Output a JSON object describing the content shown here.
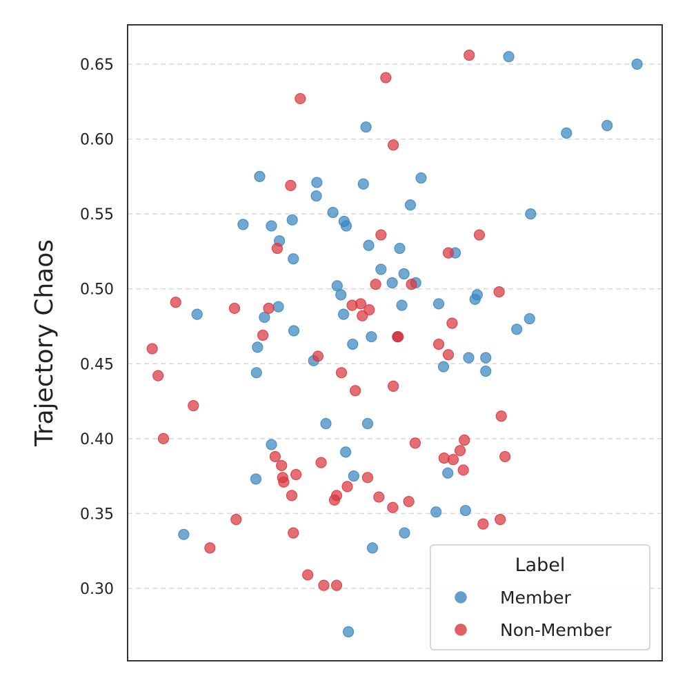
{
  "chart_data": {
    "type": "scatter",
    "title": "",
    "xlabel": "",
    "ylabel": "Trajectory Chaos",
    "ylim": [
      0.27,
      0.675
    ],
    "xlim": [
      0,
      1
    ],
    "yticks": [
      0.3,
      0.35,
      0.4,
      0.45,
      0.5,
      0.55,
      0.6,
      0.65
    ],
    "ytick_labels": [
      "0.30",
      "0.35",
      "0.40",
      "0.45",
      "0.50",
      "0.55",
      "0.60",
      "0.65"
    ],
    "x_ticks_shown": false,
    "grid": "horizontal dashed",
    "legend": {
      "title": "Label",
      "position": "bottom-right"
    },
    "series": [
      {
        "name": "Member",
        "color": "#3a87c0",
        "points": [
          [
            0.713,
            0.655
          ],
          [
            0.953,
            0.65
          ],
          [
            0.446,
            0.608
          ],
          [
            0.821,
            0.604
          ],
          [
            0.897,
            0.609
          ],
          [
            0.247,
            0.575
          ],
          [
            0.353,
            0.562
          ],
          [
            0.354,
            0.571
          ],
          [
            0.441,
            0.57
          ],
          [
            0.549,
            0.574
          ],
          [
            0.216,
            0.543
          ],
          [
            0.269,
            0.542
          ],
          [
            0.308,
            0.546
          ],
          [
            0.384,
            0.551
          ],
          [
            0.405,
            0.545
          ],
          [
            0.409,
            0.542
          ],
          [
            0.529,
            0.556
          ],
          [
            0.754,
            0.55
          ],
          [
            0.284,
            0.532
          ],
          [
            0.31,
            0.52
          ],
          [
            0.451,
            0.529
          ],
          [
            0.509,
            0.527
          ],
          [
            0.613,
            0.524
          ],
          [
            0.474,
            0.513
          ],
          [
            0.495,
            0.504
          ],
          [
            0.517,
            0.51
          ],
          [
            0.539,
            0.504
          ],
          [
            0.392,
            0.502
          ],
          [
            0.399,
            0.496
          ],
          [
            0.582,
            0.49
          ],
          [
            0.65,
            0.493
          ],
          [
            0.654,
            0.496
          ],
          [
            0.13,
            0.483
          ],
          [
            0.256,
            0.481
          ],
          [
            0.282,
            0.488
          ],
          [
            0.311,
            0.472
          ],
          [
            0.404,
            0.483
          ],
          [
            0.513,
            0.489
          ],
          [
            0.421,
            0.463
          ],
          [
            0.456,
            0.468
          ],
          [
            0.728,
            0.473
          ],
          [
            0.752,
            0.48
          ],
          [
            0.243,
            0.461
          ],
          [
            0.241,
            0.444
          ],
          [
            0.348,
            0.452
          ],
          [
            0.591,
            0.448
          ],
          [
            0.638,
            0.454
          ],
          [
            0.67,
            0.454
          ],
          [
            0.67,
            0.445
          ],
          [
            0.371,
            0.41
          ],
          [
            0.449,
            0.41
          ],
          [
            0.269,
            0.396
          ],
          [
            0.408,
            0.391
          ],
          [
            0.423,
            0.375
          ],
          [
            0.24,
            0.373
          ],
          [
            0.599,
            0.377
          ],
          [
            0.577,
            0.351
          ],
          [
            0.632,
            0.352
          ],
          [
            0.105,
            0.336
          ],
          [
            0.518,
            0.337
          ],
          [
            0.458,
            0.327
          ],
          [
            0.413,
            0.271
          ],
          [
            0.505,
            0.468
          ]
        ]
      },
      {
        "name": "Non-Member",
        "color": "#d9363e",
        "points": [
          [
            0.639,
            0.656
          ],
          [
            0.483,
            0.641
          ],
          [
            0.323,
            0.627
          ],
          [
            0.497,
            0.596
          ],
          [
            0.305,
            0.569
          ],
          [
            0.474,
            0.536
          ],
          [
            0.658,
            0.536
          ],
          [
            0.28,
            0.527
          ],
          [
            0.6,
            0.524
          ],
          [
            0.464,
            0.503
          ],
          [
            0.531,
            0.503
          ],
          [
            0.695,
            0.498
          ],
          [
            0.09,
            0.491
          ],
          [
            0.2,
            0.487
          ],
          [
            0.264,
            0.487
          ],
          [
            0.42,
            0.489
          ],
          [
            0.436,
            0.49
          ],
          [
            0.439,
            0.482
          ],
          [
            0.452,
            0.486
          ],
          [
            0.506,
            0.468
          ],
          [
            0.253,
            0.469
          ],
          [
            0.607,
            0.477
          ],
          [
            0.582,
            0.463
          ],
          [
            0.6,
            0.456
          ],
          [
            0.046,
            0.46
          ],
          [
            0.057,
            0.442
          ],
          [
            0.356,
            0.455
          ],
          [
            0.4,
            0.444
          ],
          [
            0.426,
            0.432
          ],
          [
            0.497,
            0.435
          ],
          [
            0.123,
            0.422
          ],
          [
            0.699,
            0.415
          ],
          [
            0.067,
            0.4
          ],
          [
            0.538,
            0.397
          ],
          [
            0.63,
            0.399
          ],
          [
            0.592,
            0.387
          ],
          [
            0.609,
            0.386
          ],
          [
            0.622,
            0.392
          ],
          [
            0.276,
            0.388
          ],
          [
            0.288,
            0.382
          ],
          [
            0.362,
            0.384
          ],
          [
            0.628,
            0.379
          ],
          [
            0.706,
            0.388
          ],
          [
            0.29,
            0.374
          ],
          [
            0.292,
            0.371
          ],
          [
            0.315,
            0.376
          ],
          [
            0.449,
            0.374
          ],
          [
            0.307,
            0.362
          ],
          [
            0.391,
            0.362
          ],
          [
            0.387,
            0.359
          ],
          [
            0.411,
            0.368
          ],
          [
            0.47,
            0.361
          ],
          [
            0.496,
            0.354
          ],
          [
            0.526,
            0.358
          ],
          [
            0.203,
            0.346
          ],
          [
            0.665,
            0.343
          ],
          [
            0.697,
            0.346
          ],
          [
            0.31,
            0.337
          ],
          [
            0.154,
            0.327
          ],
          [
            0.337,
            0.309
          ],
          [
            0.367,
            0.302
          ],
          [
            0.391,
            0.302
          ],
          [
            0.505,
            0.468
          ]
        ]
      }
    ]
  }
}
